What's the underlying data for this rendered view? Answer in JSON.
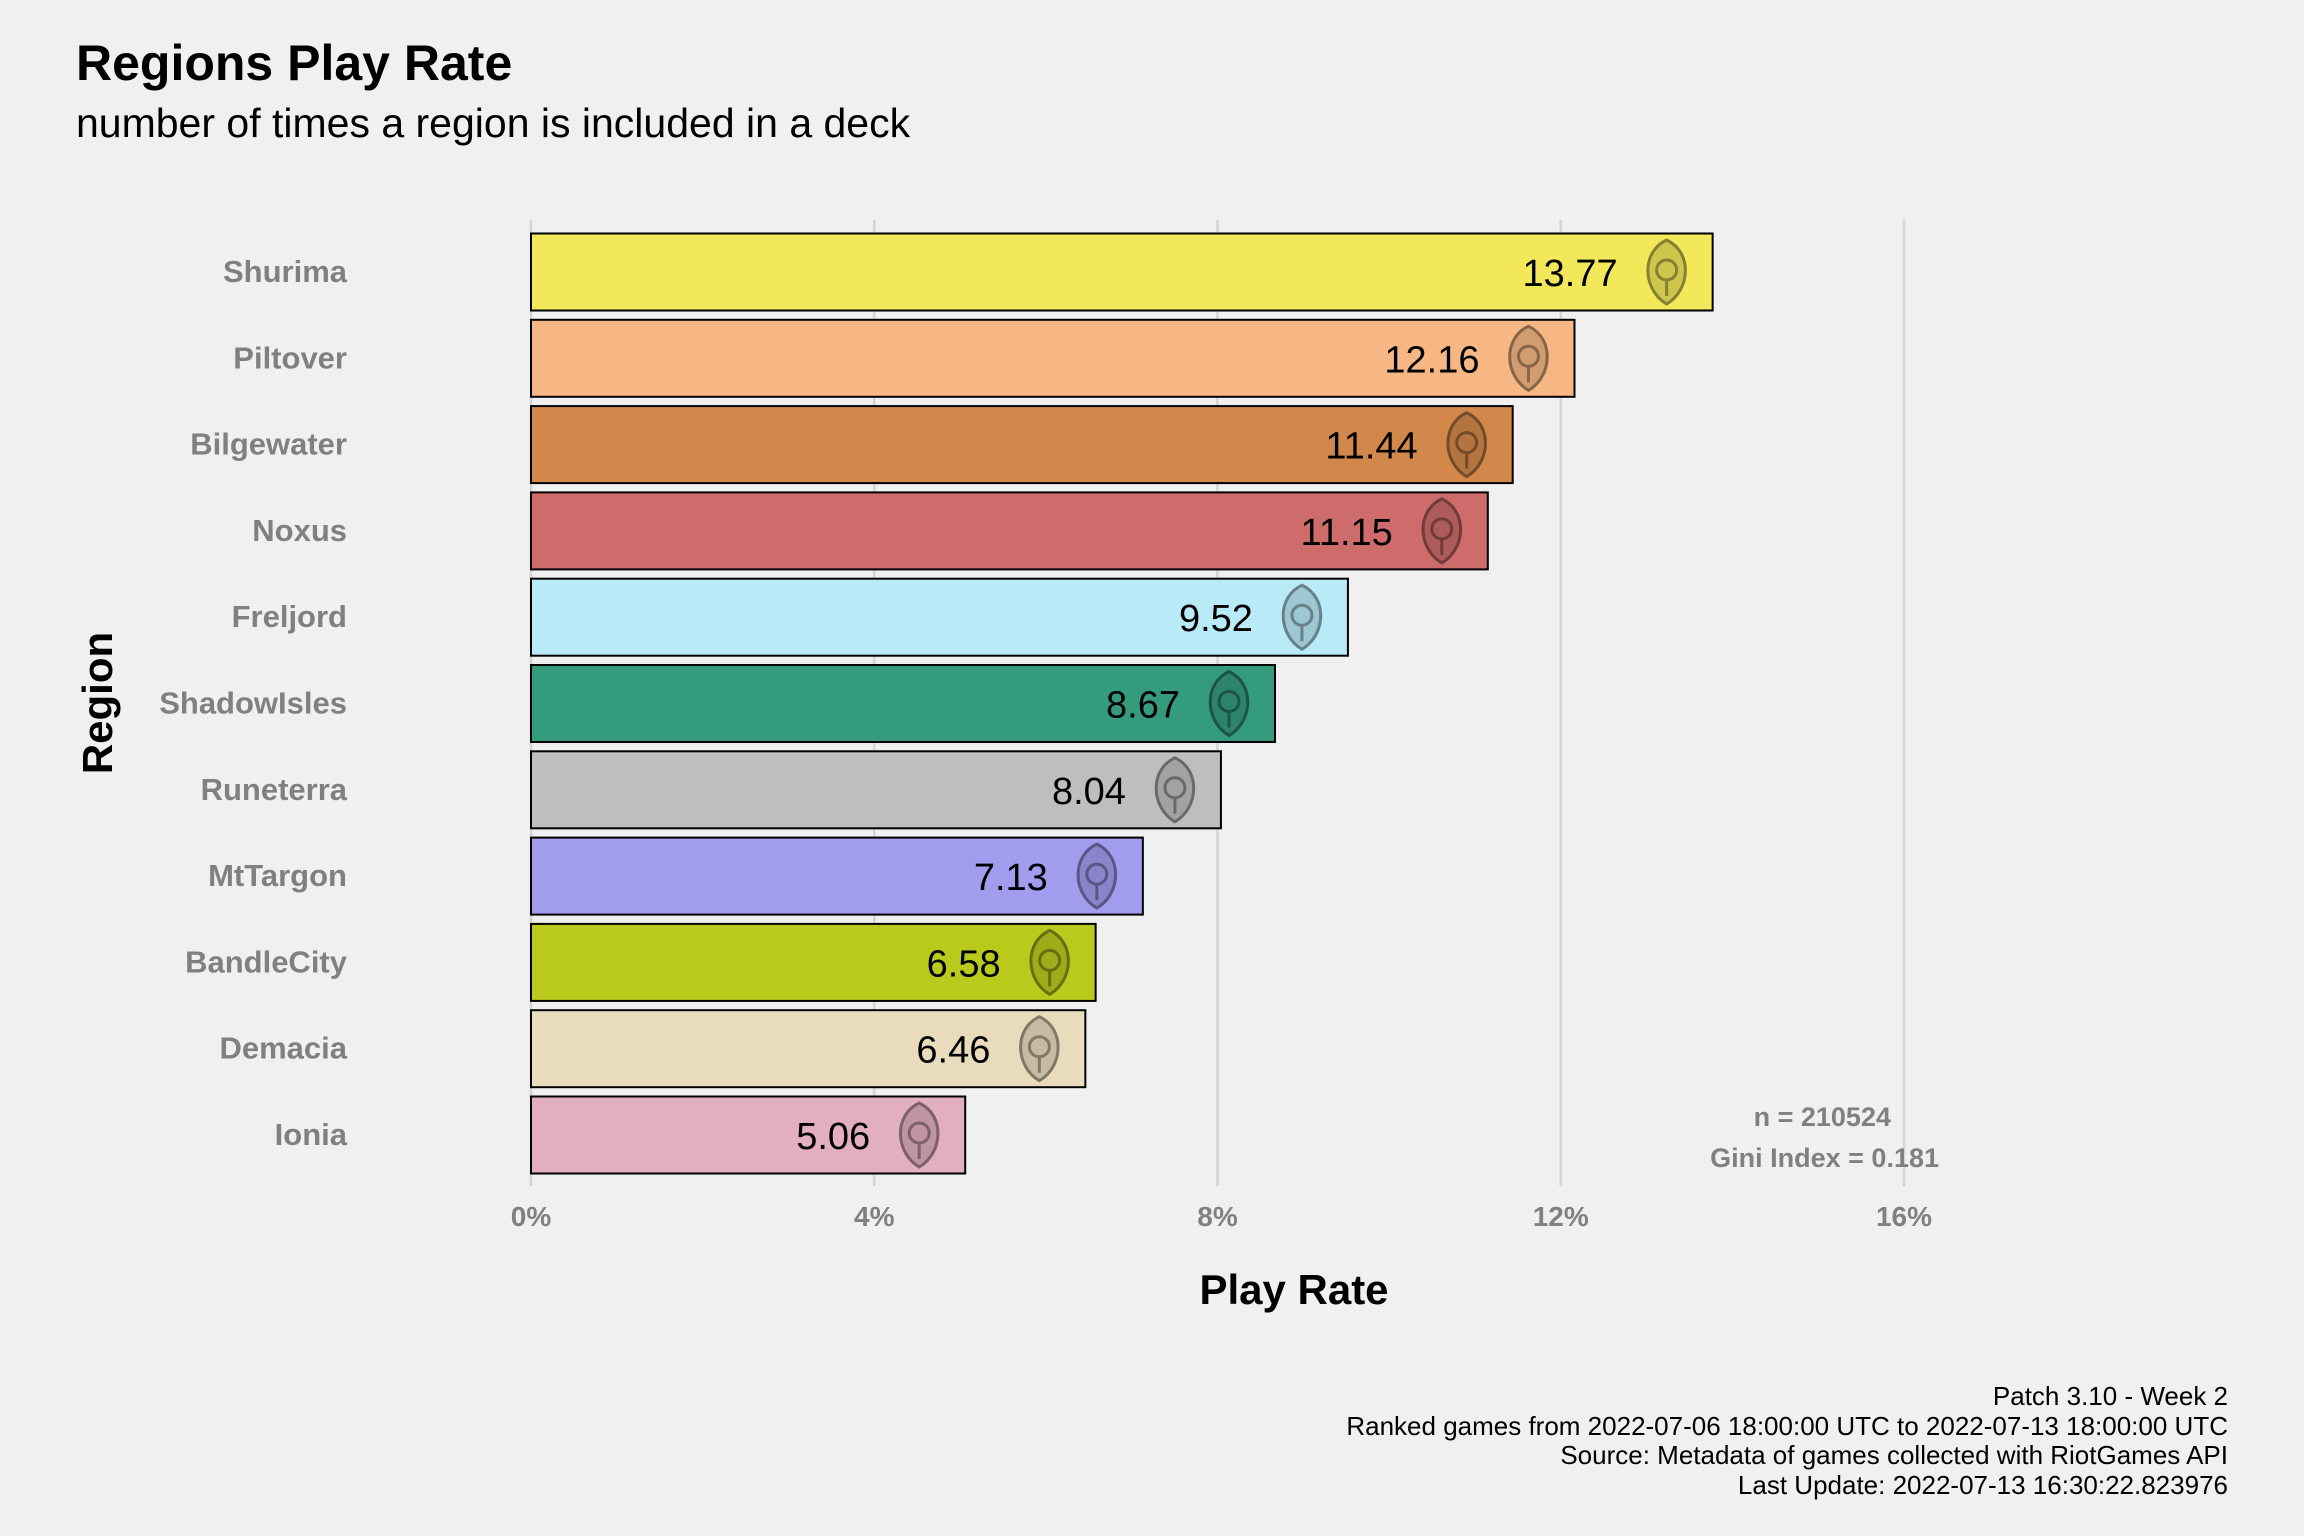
{
  "chart_data": {
    "type": "bar",
    "orientation": "horizontal",
    "title": "Regions Play Rate",
    "subtitle": "number of times a region is included in a deck",
    "xlabel": "Play Rate",
    "ylabel": "Region",
    "xlim": [
      0,
      16
    ],
    "x_ticks": [
      0,
      4,
      8,
      12,
      16
    ],
    "x_tick_labels": [
      "0%",
      "4%",
      "8%",
      "12%",
      "16%"
    ],
    "grid": "vertical major gridlines",
    "legend": "none",
    "categories": [
      "Shurima",
      "Piltover",
      "Bilgewater",
      "Noxus",
      "Freljord",
      "ShadowIsles",
      "Runeterra",
      "MtTargon",
      "BandleCity",
      "Demacia",
      "Ionia"
    ],
    "values": [
      13.77,
      12.16,
      11.44,
      11.15,
      9.52,
      8.67,
      8.04,
      7.13,
      6.58,
      6.46,
      5.06
    ],
    "value_labels": [
      "13.77",
      "12.16",
      "11.44",
      "11.15",
      "9.52",
      "8.67",
      "8.04",
      "7.13",
      "6.58",
      "6.46",
      "5.06"
    ],
    "colors": [
      "#f2e85a",
      "#f6b784",
      "#d2884a",
      "#cd6c6a",
      "#b9eaf8",
      "#359b7d",
      "#bebebe",
      "#a29cef",
      "#b9ca1c",
      "#e8dcbd",
      "#e2afc0"
    ],
    "icons": [
      "shurima-emblem-icon",
      "piltover-emblem-icon",
      "bilgewater-emblem-icon",
      "noxus-emblem-icon",
      "freljord-emblem-icon",
      "shadowisles-emblem-icon",
      "runeterra-emblem-icon",
      "targon-emblem-icon",
      "bandlecity-emblem-icon",
      "demacia-emblem-icon",
      "ionia-emblem-icon"
    ],
    "annotations": [
      "n = 210524",
      "Gini Index = 0.181"
    ]
  },
  "caption": {
    "line1": "Patch 3.10 - Week 2",
    "line2": "Ranked games from 2022-07-06 18:00:00 UTC to 2022-07-13 18:00:00 UTC",
    "line3": "Source: Metadata of games collected with RiotGames API",
    "line4": "Last Update: 2022-07-13 16:30:22.823976"
  }
}
